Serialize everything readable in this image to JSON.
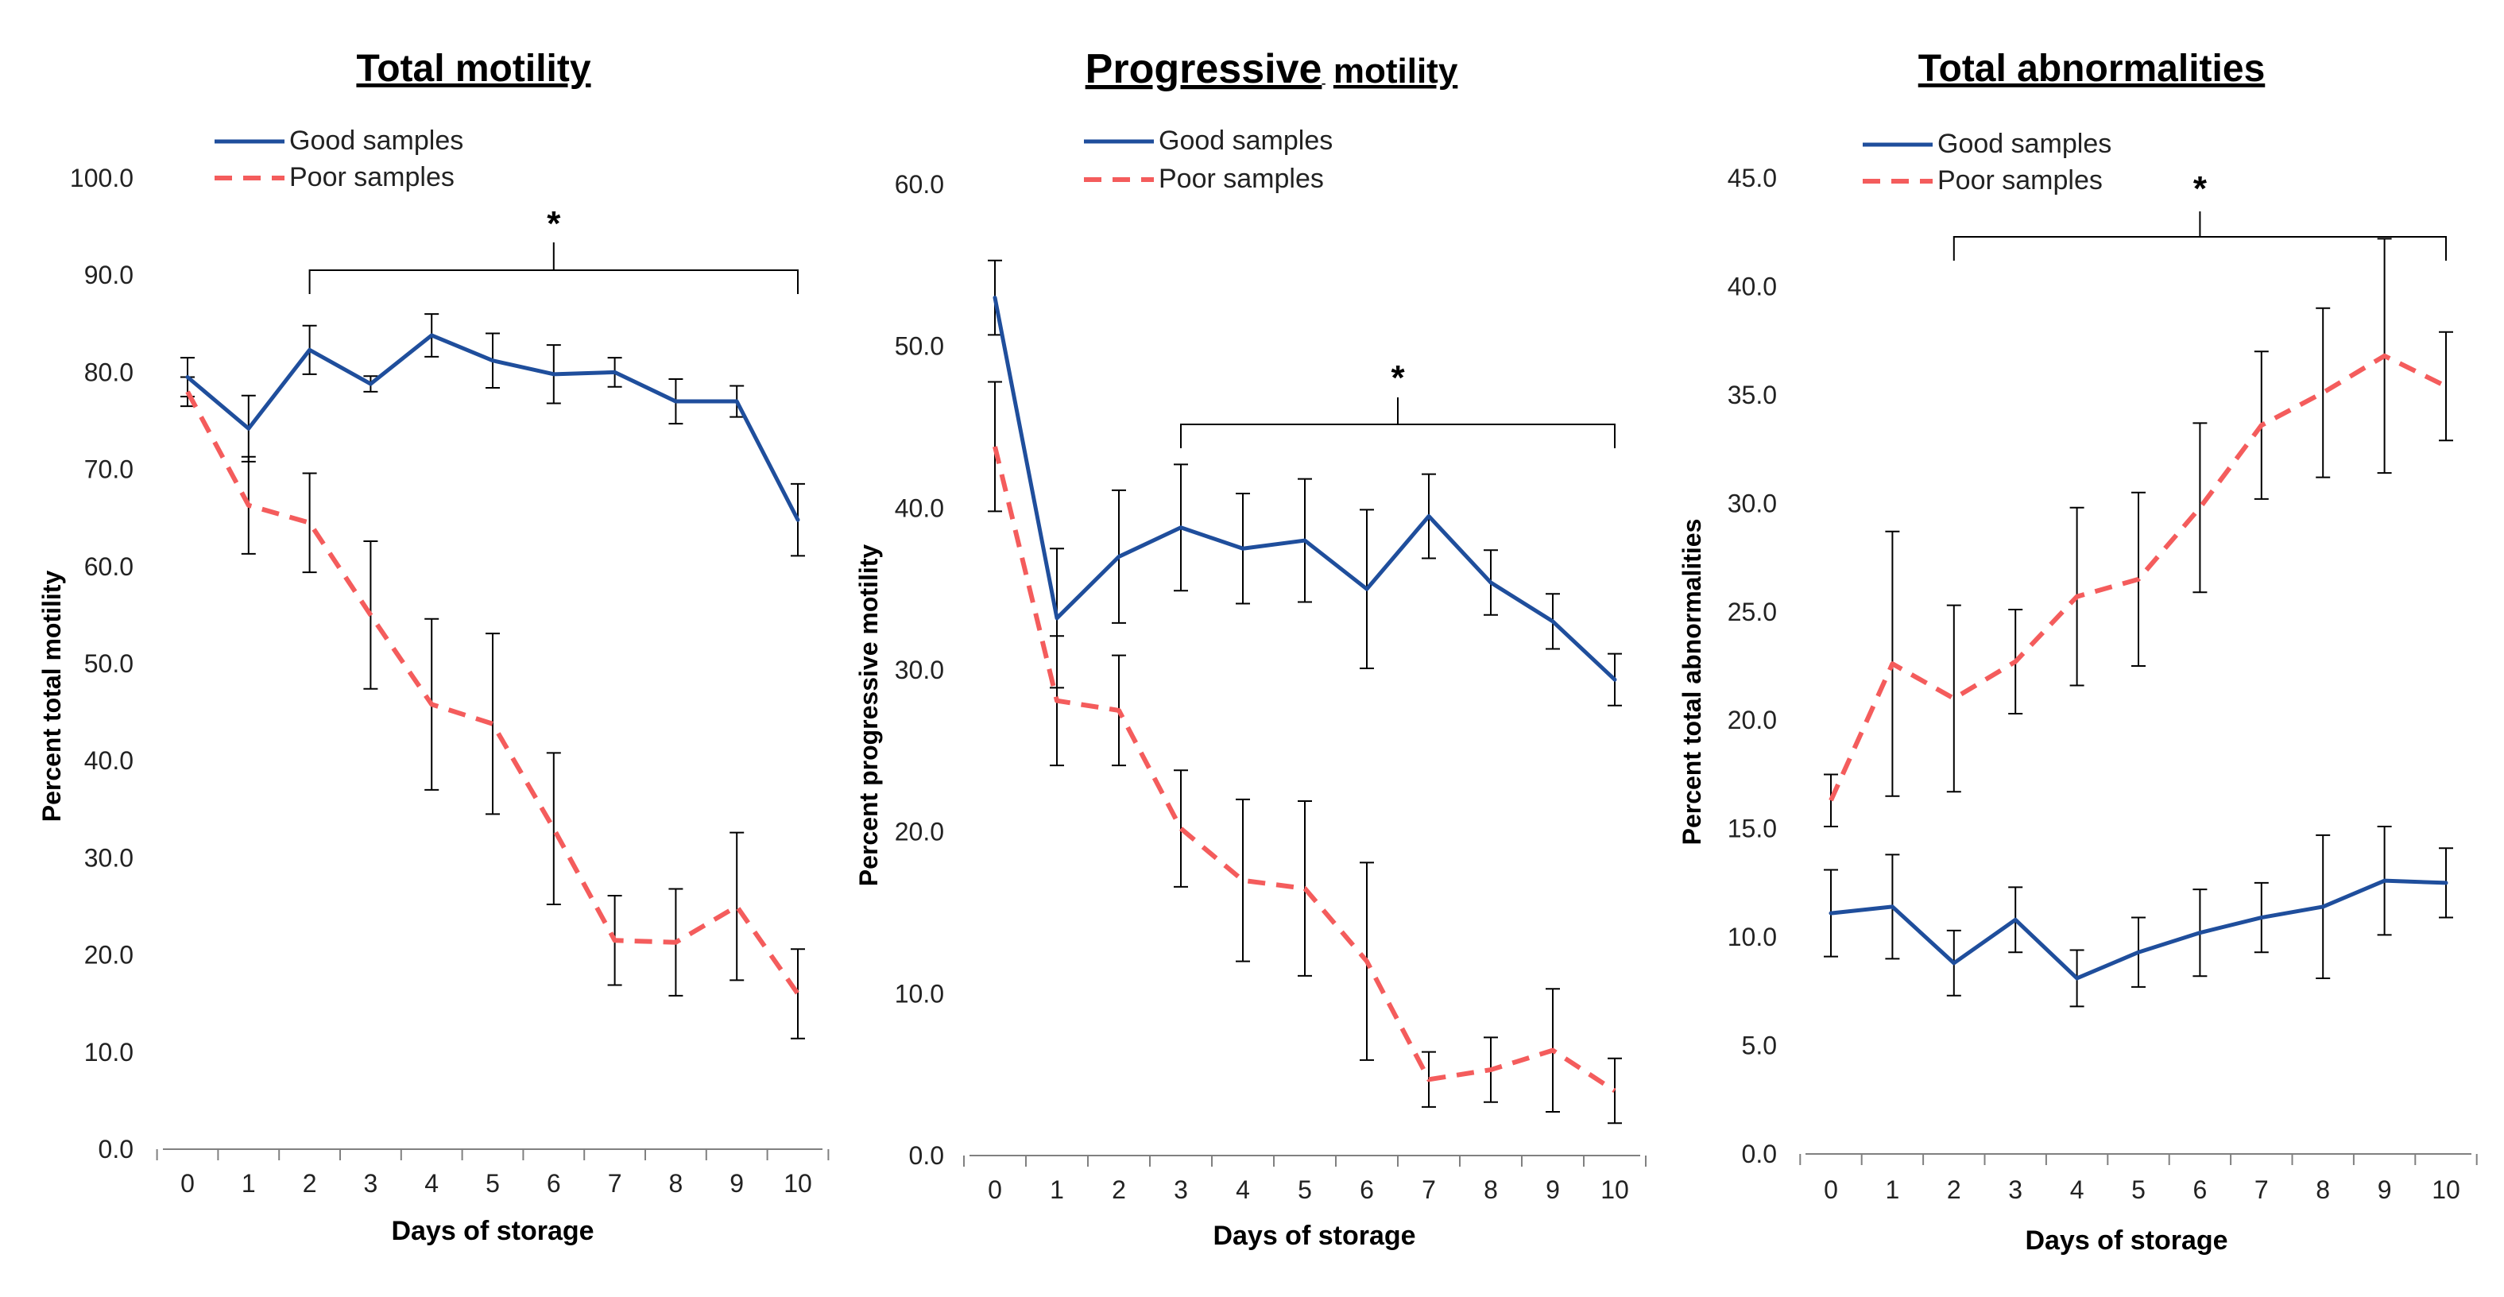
{
  "chart_data": [
    {
      "type": "line",
      "title": "Total motility",
      "xlabel": "Days of storage",
      "ylabel": "Percent total motility",
      "categories": [
        "0",
        "1",
        "2",
        "3",
        "4",
        "5",
        "6",
        "7",
        "8",
        "9",
        "10"
      ],
      "ylim": [
        0,
        100
      ],
      "yticks": [
        "0.0",
        "10.0",
        "20.0",
        "30.0",
        "40.0",
        "50.0",
        "60.0",
        "70.0",
        "80.0",
        "90.0",
        "100.0"
      ],
      "legend_position": "top-left",
      "series": [
        {
          "name": "Good samples",
          "color": "#1f4e9c",
          "dash": "solid",
          "values": [
            79.5,
            74.2,
            82.3,
            78.8,
            83.8,
            81.2,
            79.8,
            80.0,
            77.0,
            77.0,
            64.8
          ],
          "errors": [
            2.0,
            3.4,
            2.5,
            0.8,
            2.2,
            2.8,
            3.0,
            1.5,
            2.3,
            1.6,
            3.7
          ]
        },
        {
          "name": "Poor samples",
          "color": "#f45c5c",
          "dash": "dashed",
          "values": [
            78.0,
            66.3,
            64.5,
            55.0,
            45.8,
            43.8,
            33.0,
            21.5,
            21.3,
            25.0,
            16.0
          ],
          "errors": [
            1.5,
            5.0,
            5.1,
            7.6,
            8.8,
            9.3,
            7.8,
            4.6,
            5.5,
            7.6,
            4.6
          ]
        }
      ],
      "significance": {
        "label": "*",
        "from": "2",
        "to": "10"
      }
    },
    {
      "type": "line",
      "title": "Progressive motility",
      "title_parts": [
        "Progressive",
        "motility"
      ],
      "xlabel": "Days of storage",
      "ylabel": "Percent progressive motility",
      "categories": [
        "0",
        "1",
        "2",
        "3",
        "4",
        "5",
        "6",
        "7",
        "8",
        "9",
        "10"
      ],
      "ylim": [
        0,
        60
      ],
      "yticks": [
        "0.0",
        "10.0",
        "20.0",
        "30.0",
        "40.0",
        "50.0",
        "60.0"
      ],
      "legend_position": "top-center",
      "series": [
        {
          "name": "Good samples",
          "color": "#1f4e9c",
          "dash": "solid",
          "values": [
            53.0,
            33.2,
            37.0,
            38.8,
            37.5,
            38.0,
            35.0,
            39.5,
            35.4,
            33.0,
            29.4
          ],
          "errors": [
            2.3,
            4.3,
            4.1,
            3.9,
            3.4,
            3.8,
            4.9,
            2.6,
            2.0,
            1.7,
            1.6
          ]
        },
        {
          "name": "Poor samples",
          "color": "#f45c5c",
          "dash": "dashed",
          "values": [
            43.8,
            28.1,
            27.5,
            20.2,
            17.0,
            16.5,
            12.0,
            4.7,
            5.3,
            6.5,
            4.0
          ],
          "errors": [
            4.0,
            4.0,
            3.4,
            3.6,
            5.0,
            5.4,
            6.1,
            1.7,
            2.0,
            3.8,
            2.0
          ]
        }
      ],
      "significance": {
        "label": "*",
        "from": "3",
        "to": "10"
      }
    },
    {
      "type": "line",
      "title": "Total abnormalities",
      "xlabel": "Days of storage",
      "ylabel": "Percent total abnormalities",
      "categories": [
        "0",
        "1",
        "2",
        "3",
        "4",
        "5",
        "6",
        "7",
        "8",
        "9",
        "10"
      ],
      "ylim": [
        0,
        45
      ],
      "yticks": [
        "0.0",
        "5.0",
        "10.0",
        "15.0",
        "20.0",
        "25.0",
        "30.0",
        "35.0",
        "40.0",
        "45.0"
      ],
      "legend_position": "top-left",
      "series": [
        {
          "name": "Good samples",
          "color": "#1f4e9c",
          "dash": "solid",
          "values": [
            11.1,
            11.4,
            8.8,
            10.8,
            8.1,
            9.3,
            10.2,
            10.9,
            11.4,
            12.6,
            12.5
          ],
          "errors": [
            2.0,
            2.4,
            1.5,
            1.5,
            1.3,
            1.6,
            2.0,
            1.6,
            3.3,
            2.5,
            1.6
          ]
        },
        {
          "name": "Poor samples",
          "color": "#f45c5c",
          "dash": "dashed",
          "values": [
            16.3,
            22.6,
            21.0,
            22.7,
            25.7,
            26.5,
            29.8,
            33.6,
            35.1,
            36.8,
            35.4
          ],
          "errors": [
            1.2,
            6.1,
            4.3,
            2.4,
            4.1,
            4.0,
            3.9,
            3.4,
            3.9,
            5.4,
            2.5
          ]
        }
      ],
      "significance": {
        "label": "*",
        "from": "2",
        "to": "10"
      }
    }
  ]
}
